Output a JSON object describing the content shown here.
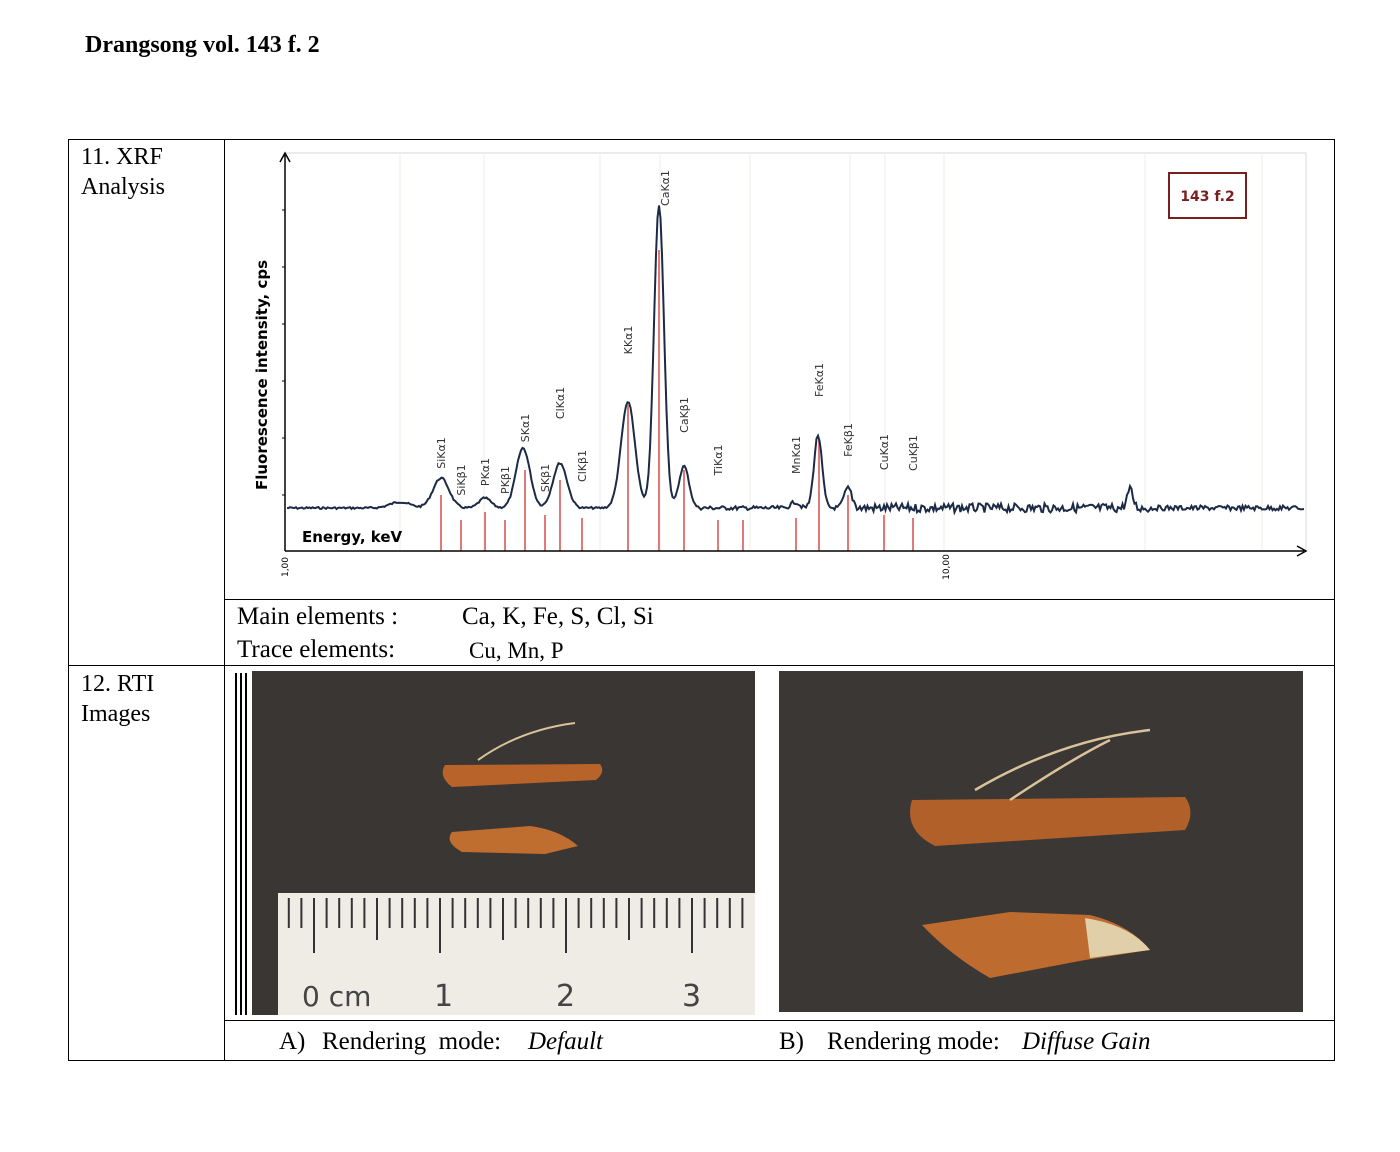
{
  "header": {
    "title": "Drangsong vol. 143 f. 2"
  },
  "table": {
    "rows": [
      {
        "label": "11. XRF Analysis",
        "figure": {
          "y_label": "Fluorescence intensity, cps",
          "x_label": "Energy, keV",
          "x_tick_labels": [
            "1,00",
            "10,00"
          ],
          "legend": "143 f.2",
          "peak_labels": [
            "SiKα1",
            "SiKβ1",
            "PKα1",
            "PKβ1",
            "SKα1",
            "SKβ1",
            "ClKα1",
            "ClKβ1",
            "KKα1",
            "CaKα1",
            "CaKβ1",
            "TiKα1",
            "MnKα1",
            "FeKα1",
            "FeKβ1",
            "CuKα1",
            "CuKβ1"
          ]
        },
        "main_elements": {
          "label": "Main elements :",
          "value": "Ca, K, Fe, S, Cl, Si"
        },
        "trace_elements": {
          "label": "Trace elements:",
          "value": "Cu, Mn, P"
        }
      },
      {
        "label": "12. RTI Images",
        "ruler_labels": [
          "0 cm",
          "1",
          "2",
          "3"
        ],
        "captions": [
          {
            "marker": "A)",
            "label": "Rendering  mode:",
            "mode": "Default"
          },
          {
            "marker": "B)",
            "label": "Rendering mode:",
            "mode": "Diffuse Gain"
          }
        ]
      }
    ]
  }
}
